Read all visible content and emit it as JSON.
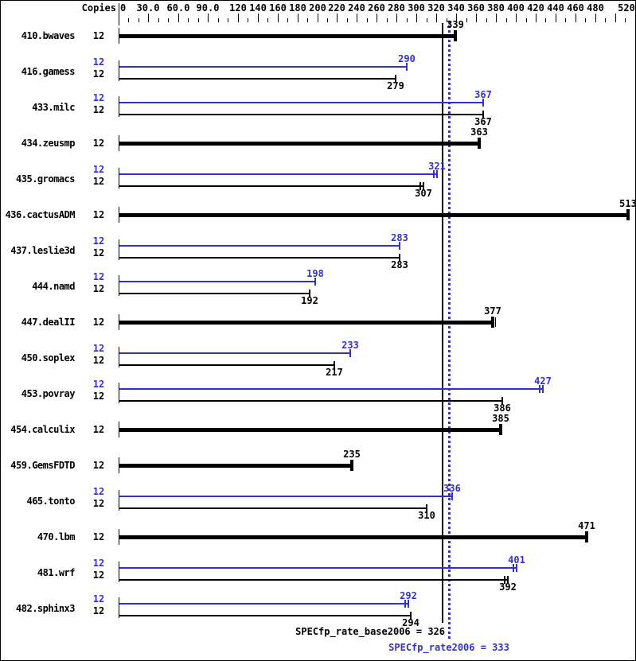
{
  "chart_data": {
    "type": "bar",
    "orientation": "horizontal",
    "description": "SPECfp_rate2006 benchmark results bar chart",
    "colors": {
      "peak": "#3232c8",
      "base": "#000000",
      "background": "#ffffff"
    },
    "copies_header": "Copies",
    "axis": {
      "min": 0,
      "max": 520,
      "minor_tick_step": 10,
      "grid": false,
      "labels": [
        {
          "value": 0,
          "text": "0"
        },
        {
          "value": 30,
          "text": "30.0"
        },
        {
          "value": 60,
          "text": "60.0"
        },
        {
          "value": 90,
          "text": "90.0"
        },
        {
          "value": 120,
          "text": "120"
        },
        {
          "value": 140,
          "text": "140"
        },
        {
          "value": 160,
          "text": "160"
        },
        {
          "value": 180,
          "text": "180"
        },
        {
          "value": 200,
          "text": "200"
        },
        {
          "value": 220,
          "text": "220"
        },
        {
          "value": 240,
          "text": "240"
        },
        {
          "value": 260,
          "text": "260"
        },
        {
          "value": 280,
          "text": "280"
        },
        {
          "value": 300,
          "text": "300"
        },
        {
          "value": 320,
          "text": "320"
        },
        {
          "value": 340,
          "text": "340"
        },
        {
          "value": 360,
          "text": "360"
        },
        {
          "value": 380,
          "text": "380"
        },
        {
          "value": 400,
          "text": "400"
        },
        {
          "value": 420,
          "text": "420"
        },
        {
          "value": 440,
          "text": "440"
        },
        {
          "value": 460,
          "text": "460"
        },
        {
          "value": 480,
          "text": "480"
        },
        {
          "value": 520,
          "text": "520"
        }
      ],
      "extra_major_ticks": [
        500
      ]
    },
    "benchmarks": [
      {
        "name": "410.bwaves",
        "copies": "12",
        "bars": [
          {
            "series": "base",
            "value": 339,
            "thick": true,
            "cap": "single"
          }
        ]
      },
      {
        "name": "416.gamess",
        "copies": "12",
        "bars": [
          {
            "series": "peak",
            "value": 290,
            "cap": "single"
          },
          {
            "series": "base",
            "value": 279,
            "cap": "single"
          }
        ]
      },
      {
        "name": "433.milc",
        "copies": "12",
        "bars": [
          {
            "series": "peak",
            "value": 367,
            "cap": "single"
          },
          {
            "series": "base",
            "value": 367,
            "cap": "single"
          }
        ]
      },
      {
        "name": "434.zeusmp",
        "copies": "12",
        "bars": [
          {
            "series": "base",
            "value": 363,
            "thick": true,
            "cap": "single"
          }
        ]
      },
      {
        "name": "435.gromacs",
        "copies": "12",
        "bars": [
          {
            "series": "peak",
            "value": 321,
            "cap": "double"
          },
          {
            "series": "base",
            "value": 307,
            "cap": "double"
          }
        ]
      },
      {
        "name": "436.cactusADM",
        "copies": "12",
        "bars": [
          {
            "series": "base",
            "value": 513,
            "thick": true,
            "cap": "single"
          }
        ]
      },
      {
        "name": "437.leslie3d",
        "copies": "12",
        "bars": [
          {
            "series": "peak",
            "value": 283,
            "cap": "single"
          },
          {
            "series": "base",
            "value": 283,
            "cap": "single"
          }
        ]
      },
      {
        "name": "444.namd",
        "copies": "12",
        "bars": [
          {
            "series": "peak",
            "value": 198,
            "cap": "single"
          },
          {
            "series": "base",
            "value": 192,
            "cap": "single"
          }
        ]
      },
      {
        "name": "447.dealII",
        "copies": "12",
        "bars": [
          {
            "series": "base",
            "value": 377,
            "thick": true,
            "cap": "double"
          }
        ]
      },
      {
        "name": "450.soplex",
        "copies": "12",
        "bars": [
          {
            "series": "peak",
            "value": 233,
            "cap": "single"
          },
          {
            "series": "base",
            "value": 217,
            "cap": "single"
          }
        ]
      },
      {
        "name": "453.povray",
        "copies": "12",
        "bars": [
          {
            "series": "peak",
            "value": 427,
            "cap": "double"
          },
          {
            "series": "base",
            "value": 386,
            "cap": "single"
          }
        ]
      },
      {
        "name": "454.calculix",
        "copies": "12",
        "bars": [
          {
            "series": "base",
            "value": 385,
            "thick": true,
            "cap": "single"
          }
        ]
      },
      {
        "name": "459.GemsFDTD",
        "copies": "12",
        "bars": [
          {
            "series": "base",
            "value": 235,
            "thick": true,
            "cap": "single"
          }
        ]
      },
      {
        "name": "465.tonto",
        "copies": "12",
        "bars": [
          {
            "series": "peak",
            "value": 336,
            "cap": "single"
          },
          {
            "series": "base",
            "value": 310,
            "cap": "single"
          }
        ]
      },
      {
        "name": "470.lbm",
        "copies": "12",
        "bars": [
          {
            "series": "base",
            "value": 471,
            "thick": true,
            "cap": "single"
          }
        ]
      },
      {
        "name": "481.wrf",
        "copies": "12",
        "bars": [
          {
            "series": "peak",
            "value": 401,
            "cap": "double"
          },
          {
            "series": "base",
            "value": 392,
            "cap": "double"
          }
        ]
      },
      {
        "name": "482.sphinx3",
        "copies": "12",
        "bars": [
          {
            "series": "peak",
            "value": 292,
            "cap": "double"
          },
          {
            "series": "base",
            "value": 294,
            "cap": "single"
          }
        ]
      }
    ],
    "summary": {
      "base_label": "SPECfp_rate_base2006 = 326",
      "base_value": 326,
      "peak_label": "SPECfp_rate2006 = 333",
      "peak_value": 333
    }
  }
}
